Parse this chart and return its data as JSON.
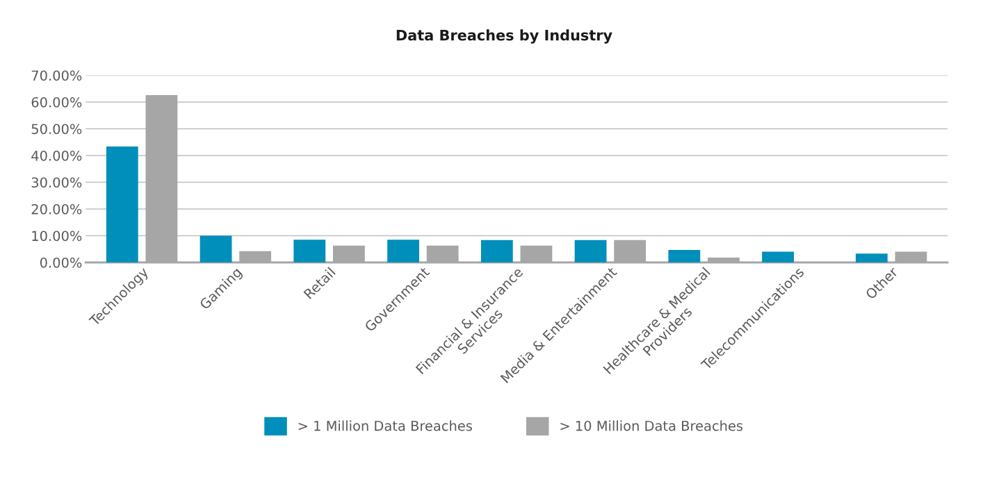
{
  "chart_data": {
    "type": "bar",
    "title": "Data Breaches by Industry",
    "categories": [
      "Technology",
      "Gaming",
      "Retail",
      "Government",
      "Financial & Insurance\nServices",
      "Media & Entertainment",
      "Healthcare & Medical\nProviders",
      "Telecommunications",
      "Other"
    ],
    "series": [
      {
        "name": "> 1 Million Data Breaches",
        "color": "#008fba",
        "values": [
          43.4,
          10.0,
          8.5,
          8.5,
          8.4,
          8.4,
          4.7,
          4.0,
          3.3
        ]
      },
      {
        "name": "> 10 Million Data Breaches",
        "color": "#a6a6a6",
        "values": [
          62.6,
          4.2,
          6.3,
          6.3,
          6.3,
          8.4,
          1.8,
          0,
          4.0
        ]
      }
    ],
    "ylim": [
      0,
      70
    ],
    "yticks": [
      {
        "value": 0,
        "label": "0.00%"
      },
      {
        "value": 10,
        "label": "10.00%"
      },
      {
        "value": 20,
        "label": "20.00%"
      },
      {
        "value": 30,
        "label": "30.00%"
      },
      {
        "value": 40,
        "label": "40.00%"
      },
      {
        "value": 50,
        "label": "50.00%"
      },
      {
        "value": 60,
        "label": "60.00%"
      },
      {
        "value": 70,
        "label": "70.00%"
      }
    ],
    "grid": "y",
    "legend": "bottom"
  }
}
